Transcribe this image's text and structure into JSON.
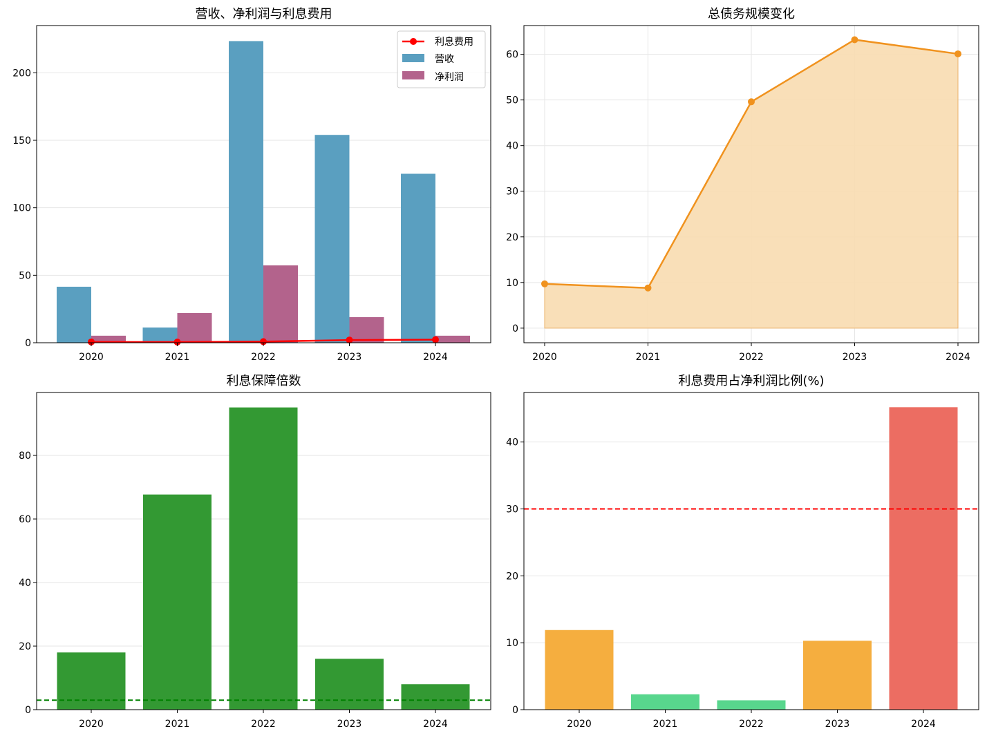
{
  "chart_data": [
    {
      "type": "bar",
      "title": "营收、净利润与利息费用",
      "categories": [
        "2020",
        "2021",
        "2022",
        "2023",
        "2024"
      ],
      "ylim": [
        0,
        235
      ],
      "yticks": [
        0,
        50,
        100,
        150,
        200
      ],
      "grid": true,
      "legend": "top-right",
      "series": [
        {
          "name": "营收",
          "kind": "bar",
          "color": "#5a9fc0",
          "values": [
            41.5,
            11.3,
            223.5,
            154.0,
            125.2
          ]
        },
        {
          "name": "净利润",
          "kind": "bar",
          "color": "#b3638c",
          "values": [
            5.2,
            22.0,
            57.3,
            19.0,
            5.2
          ]
        },
        {
          "name": "利息费用",
          "kind": "line",
          "color": "#ff0000",
          "values": [
            0.6,
            0.5,
            0.8,
            2.0,
            2.3
          ]
        }
      ]
    },
    {
      "type": "area",
      "title": "总债务规模变化",
      "categories": [
        "2020",
        "2021",
        "2022",
        "2023",
        "2024"
      ],
      "values": [
        9.7,
        8.8,
        49.6,
        63.2,
        60.1
      ],
      "color": "#f0921e",
      "fill_color": "#f8dbb0",
      "ylim": [
        -3.2,
        66.3
      ],
      "yticks": [
        0,
        10,
        20,
        30,
        40,
        50,
        60
      ],
      "grid": true
    },
    {
      "type": "bar",
      "title": "利息保障倍数",
      "categories": [
        "2020",
        "2021",
        "2022",
        "2023",
        "2024"
      ],
      "values": [
        18.0,
        67.7,
        95.1,
        16.0,
        8.0
      ],
      "color": "#339933",
      "ylim": [
        0,
        99.8
      ],
      "yticks": [
        0,
        20,
        40,
        60,
        80
      ],
      "reference_line": {
        "value": 3.0,
        "color": "#008000",
        "style": "dashed"
      },
      "grid": true
    },
    {
      "type": "bar",
      "title": "利息费用占净利润比例(%)",
      "categories": [
        "2020",
        "2021",
        "2022",
        "2023",
        "2024"
      ],
      "values": [
        11.9,
        2.3,
        1.4,
        10.3,
        45.2
      ],
      "colors": [
        "#f5ae3f",
        "#58d68d",
        "#58d68d",
        "#f5ae3f",
        "#ec6d62"
      ],
      "ylim": [
        0,
        47.4
      ],
      "yticks": [
        0,
        10,
        20,
        30,
        40
      ],
      "reference_line": {
        "value": 30,
        "color": "#ff0000",
        "style": "dashed"
      },
      "grid": true
    }
  ]
}
